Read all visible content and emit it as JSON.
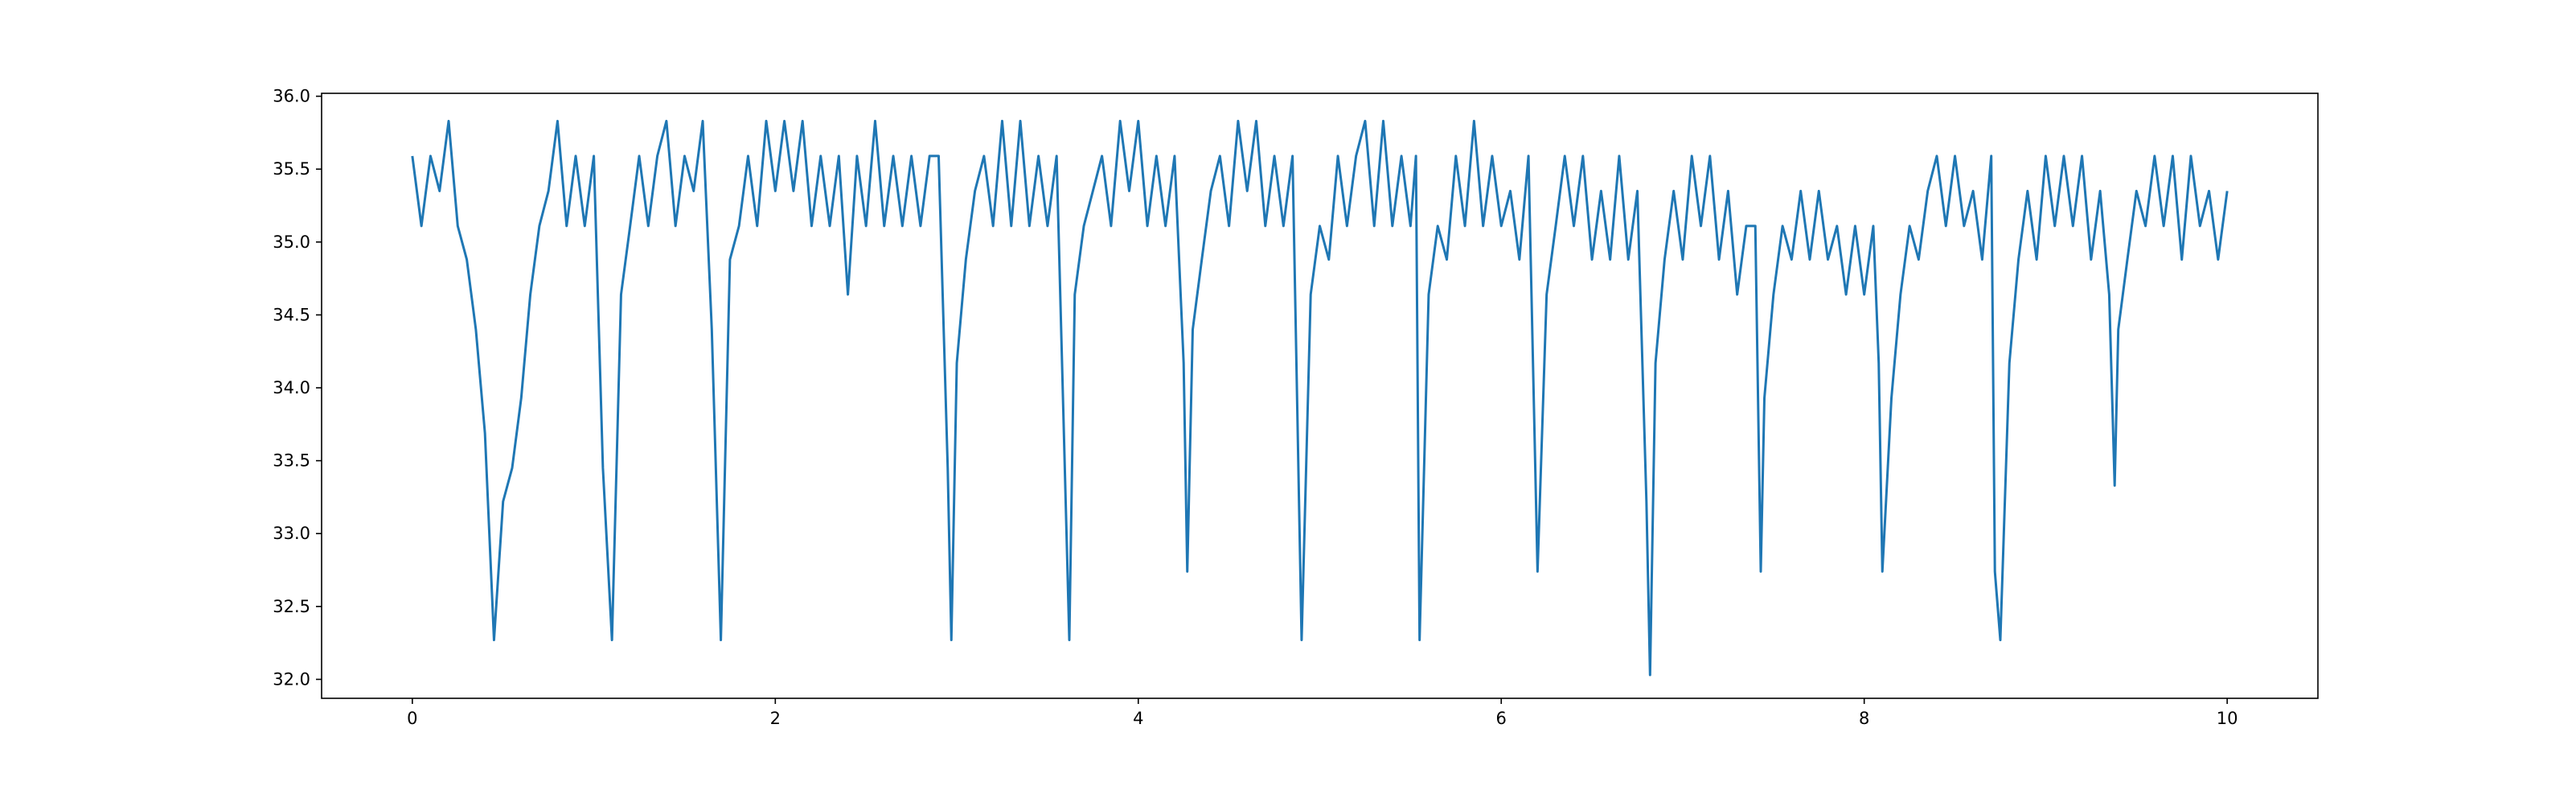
{
  "chart_data": {
    "type": "line",
    "color": "#1f77b4",
    "xlim": [
      -0.5,
      10.5
    ],
    "ylim": [
      31.87,
      36.02
    ],
    "xticks": [
      0,
      2,
      4,
      6,
      8,
      10
    ],
    "yticks": [
      {
        "value": 32,
        "label": "32.0"
      },
      {
        "value": 32.5,
        "label": "32.5"
      },
      {
        "value": 33,
        "label": "33.0"
      },
      {
        "value": 33.5,
        "label": "33.5"
      },
      {
        "value": 34,
        "label": "34.0"
      },
      {
        "value": 34.5,
        "label": "34.5"
      },
      {
        "value": 35,
        "label": "35.0"
      },
      {
        "value": 35.5,
        "label": "35.5"
      },
      {
        "value": 36,
        "label": "36.0"
      }
    ],
    "x": [
      0.0,
      0.05,
      0.1,
      0.15,
      0.2,
      0.25,
      0.3,
      0.35,
      0.4,
      0.45,
      0.5,
      0.55,
      0.6,
      0.65,
      0.7,
      0.75,
      0.8,
      0.85,
      0.9,
      0.95,
      1.0,
      1.05,
      1.1,
      1.15,
      1.2,
      1.25,
      1.3,
      1.35,
      1.4,
      1.45,
      1.5,
      1.55,
      1.6,
      1.65,
      1.7,
      1.75,
      1.8,
      1.85,
      1.9,
      1.95,
      2.0,
      2.05,
      2.1,
      2.15,
      2.2,
      2.25,
      2.3,
      2.35,
      2.4,
      2.45,
      2.5,
      2.55,
      2.6,
      2.65,
      2.7,
      2.75,
      2.8,
      2.85,
      2.9,
      2.95,
      2.97,
      3.0,
      3.05,
      3.1,
      3.15,
      3.2,
      3.25,
      3.3,
      3.35,
      3.4,
      3.45,
      3.5,
      3.55,
      3.6,
      3.62,
      3.65,
      3.7,
      3.75,
      3.8,
      3.85,
      3.9,
      3.95,
      4.0,
      4.05,
      4.1,
      4.15,
      4.2,
      4.25,
      4.27,
      4.3,
      4.35,
      4.4,
      4.45,
      4.5,
      4.55,
      4.6,
      4.65,
      4.7,
      4.75,
      4.8,
      4.85,
      4.9,
      4.95,
      5.0,
      5.05,
      5.1,
      5.15,
      5.2,
      5.25,
      5.3,
      5.35,
      5.4,
      5.45,
      5.5,
      5.53,
      5.55,
      5.6,
      5.65,
      5.7,
      5.75,
      5.8,
      5.85,
      5.9,
      5.95,
      6.0,
      6.05,
      6.1,
      6.15,
      6.2,
      6.25,
      6.3,
      6.35,
      6.4,
      6.45,
      6.5,
      6.55,
      6.6,
      6.65,
      6.7,
      6.75,
      6.8,
      6.82,
      6.85,
      6.9,
      6.95,
      7.0,
      7.05,
      7.1,
      7.15,
      7.2,
      7.25,
      7.3,
      7.35,
      7.4,
      7.43,
      7.45,
      7.5,
      7.55,
      7.6,
      7.65,
      7.7,
      7.75,
      7.8,
      7.85,
      7.9,
      7.95,
      8.0,
      8.05,
      8.08,
      8.1,
      8.15,
      8.2,
      8.25,
      8.3,
      8.35,
      8.4,
      8.45,
      8.5,
      8.55,
      8.6,
      8.65,
      8.7,
      8.72,
      8.75,
      8.8,
      8.85,
      8.9,
      8.95,
      9.0,
      9.05,
      9.1,
      9.15,
      9.2,
      9.25,
      9.3,
      9.35,
      9.38,
      9.4,
      9.45,
      9.5,
      9.55,
      9.6,
      9.65,
      9.7,
      9.75,
      9.8,
      9.85,
      9.9,
      9.95,
      10.0
    ],
    "values": [
      35.59,
      35.11,
      35.59,
      35.35,
      35.83,
      35.11,
      34.88,
      34.4,
      33.69,
      32.27,
      33.22,
      33.45,
      33.93,
      34.64,
      35.11,
      35.35,
      35.83,
      35.11,
      35.59,
      35.11,
      35.59,
      33.45,
      32.27,
      34.64,
      35.11,
      35.59,
      35.11,
      35.59,
      35.83,
      35.11,
      35.59,
      35.35,
      35.83,
      34.4,
      32.27,
      34.88,
      35.11,
      35.59,
      35.11,
      35.83,
      35.35,
      35.83,
      35.35,
      35.83,
      35.11,
      35.59,
      35.11,
      35.59,
      34.64,
      35.59,
      35.11,
      35.83,
      35.11,
      35.59,
      35.11,
      35.59,
      35.11,
      35.59,
      35.59,
      33.45,
      32.27,
      34.17,
      34.88,
      35.35,
      35.59,
      35.11,
      35.83,
      35.11,
      35.83,
      35.11,
      35.59,
      35.11,
      35.59,
      33.22,
      32.27,
      34.64,
      35.11,
      35.35,
      35.59,
      35.11,
      35.83,
      35.35,
      35.83,
      35.11,
      35.59,
      35.11,
      35.59,
      34.17,
      32.74,
      34.4,
      34.88,
      35.35,
      35.59,
      35.11,
      35.83,
      35.35,
      35.83,
      35.11,
      35.59,
      35.11,
      35.59,
      32.27,
      34.64,
      35.11,
      34.88,
      35.59,
      35.11,
      35.59,
      35.83,
      35.11,
      35.83,
      35.11,
      35.59,
      35.11,
      35.59,
      32.27,
      34.64,
      35.11,
      34.88,
      35.59,
      35.11,
      35.83,
      35.11,
      35.59,
      35.11,
      35.35,
      34.88,
      35.59,
      32.74,
      34.64,
      35.11,
      35.59,
      35.11,
      35.59,
      34.88,
      35.35,
      34.88,
      35.59,
      34.88,
      35.35,
      33.22,
      32.03,
      34.17,
      34.88,
      35.35,
      34.88,
      35.59,
      35.11,
      35.59,
      34.88,
      35.35,
      34.64,
      35.11,
      35.11,
      32.74,
      33.93,
      34.64,
      35.11,
      34.88,
      35.35,
      34.88,
      35.35,
      34.88,
      35.11,
      34.64,
      35.11,
      34.64,
      35.11,
      34.17,
      32.74,
      33.93,
      34.64,
      35.11,
      34.88,
      35.35,
      35.59,
      35.11,
      35.59,
      35.11,
      35.35,
      34.88,
      35.59,
      32.74,
      32.27,
      34.17,
      34.88,
      35.35,
      34.88,
      35.59,
      35.11,
      35.59,
      35.11,
      35.59,
      34.88,
      35.35,
      34.64,
      33.33,
      34.4,
      34.88,
      35.35,
      35.11,
      35.59,
      35.11,
      35.59,
      34.88,
      35.59,
      35.11,
      35.35,
      34.88,
      35.35
    ]
  }
}
